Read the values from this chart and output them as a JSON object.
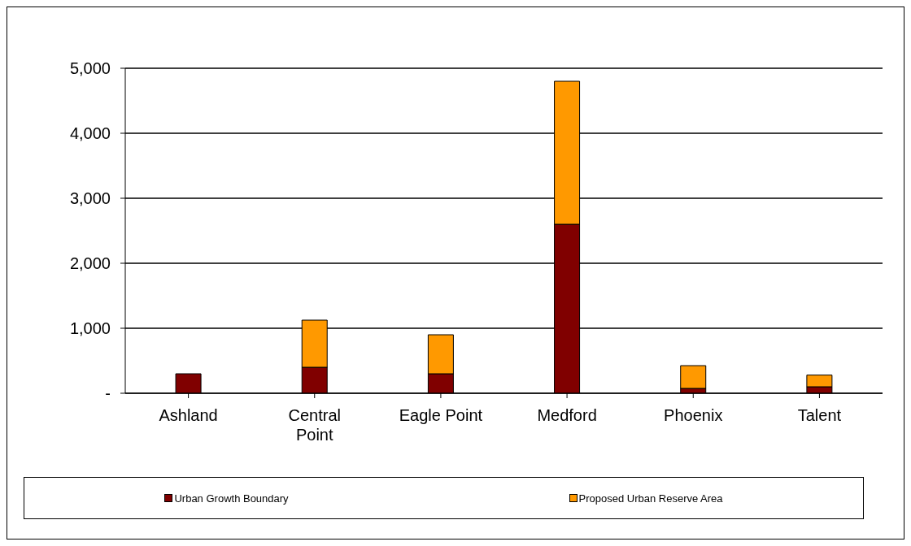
{
  "chart_data": {
    "type": "bar",
    "stacked": true,
    "categories": [
      "Ashland",
      "Central Point",
      "Eagle Point",
      "Medford",
      "Phoenix",
      "Talent"
    ],
    "series": [
      {
        "name": "Urban Growth Boundary",
        "color": "#800000",
        "values": [
          300,
          400,
          300,
          2600,
          75,
          100
        ]
      },
      {
        "name": "Proposed Urban Reserve Area",
        "color": "#ff9900",
        "values": [
          0,
          725,
          600,
          2200,
          350,
          180
        ]
      }
    ],
    "ylim": [
      0,
      5000
    ],
    "yticks": [
      {
        "value": 0,
        "label": "-"
      },
      {
        "value": 1000,
        "label": "1,000"
      },
      {
        "value": 2000,
        "label": "2,000"
      },
      {
        "value": 3000,
        "label": "3,000"
      },
      {
        "value": 4000,
        "label": "4,000"
      },
      {
        "value": 5000,
        "label": "5,000"
      }
    ],
    "grid": "y",
    "legend": "bottom"
  }
}
